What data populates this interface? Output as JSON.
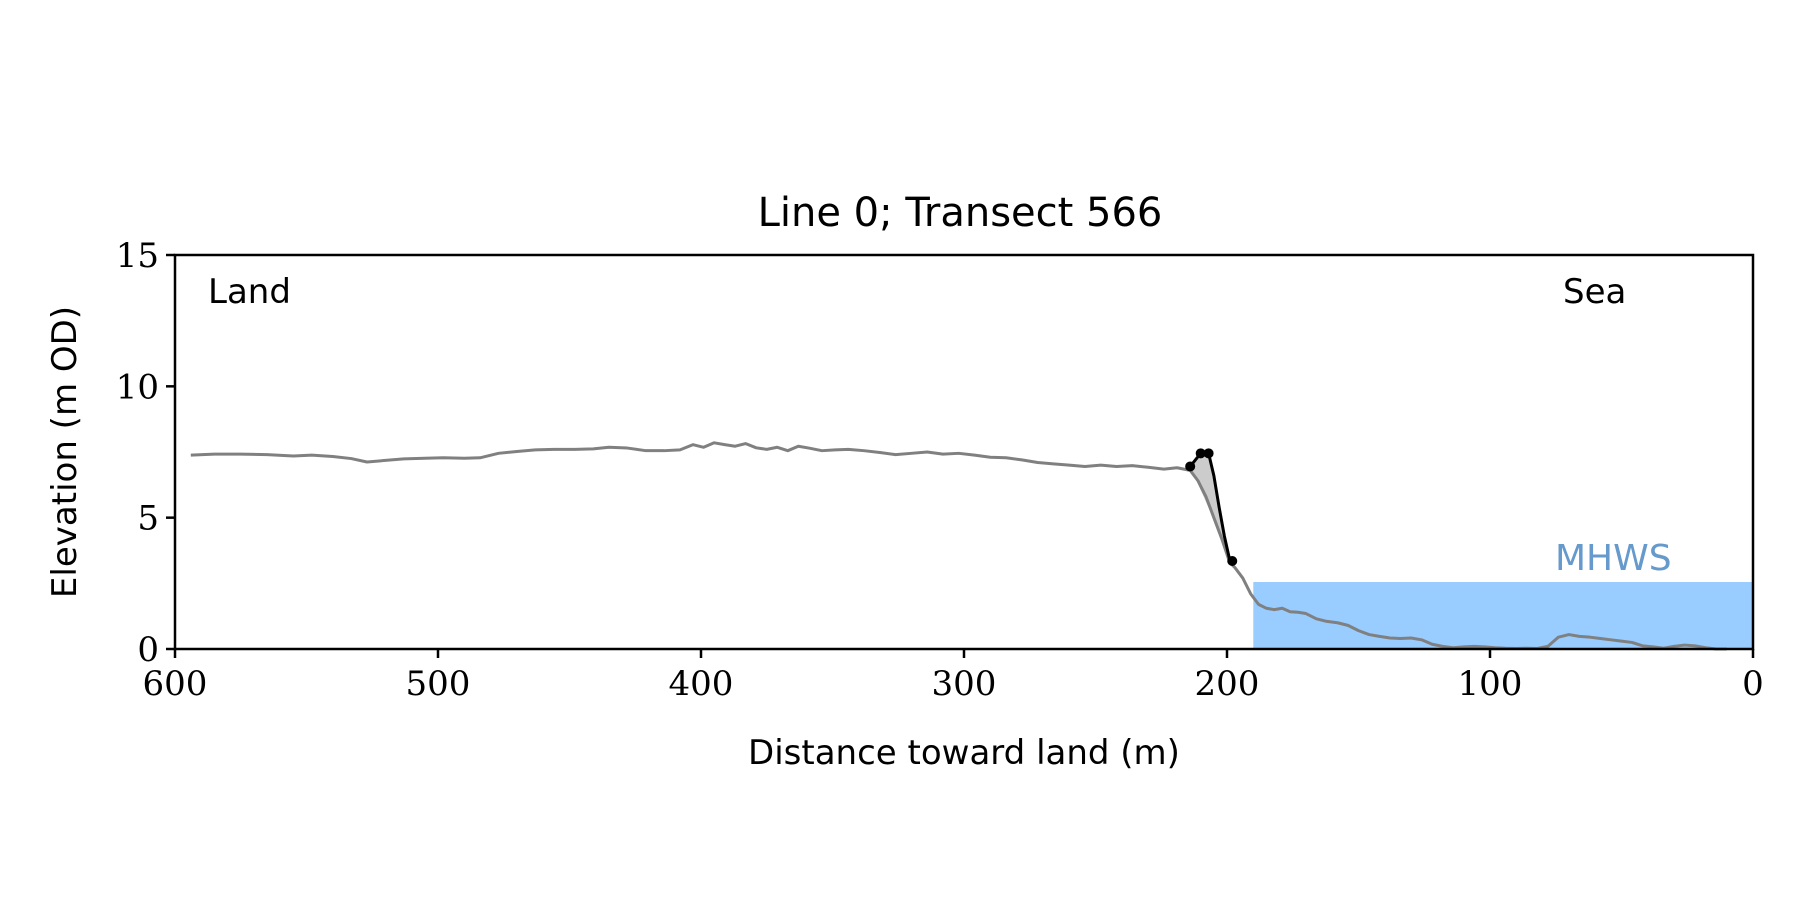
{
  "chart_data": {
    "type": "line",
    "title": "Line 0; Transect 566",
    "xlabel": "Distance toward land (m)",
    "ylabel": "Elevation (m OD)",
    "xlim": [
      600,
      0
    ],
    "ylim": [
      0,
      15
    ],
    "x_ticks": [
      600,
      500,
      400,
      300,
      200,
      100,
      0
    ],
    "y_ticks": [
      0,
      5,
      10,
      15
    ],
    "grid": false,
    "annotations": {
      "land": "Land",
      "sea": "Sea",
      "mhws": "MHWS"
    },
    "mhws": {
      "elevation": 2.55,
      "x_start": 190,
      "x_end": 0,
      "color": "#99ccff",
      "label_color": "#6699cc"
    },
    "profile": {
      "color": "#808080",
      "x": [
        594,
        585,
        575,
        565,
        555,
        548,
        540,
        533,
        527,
        520,
        513,
        505,
        498,
        490,
        484,
        477,
        470,
        463,
        456,
        448,
        441,
        435,
        428,
        421,
        414,
        408,
        403,
        399,
        395,
        391,
        387,
        383,
        379,
        375,
        371,
        367,
        363,
        359,
        354,
        349,
        344,
        338,
        332,
        326,
        320,
        314,
        308,
        302,
        296,
        290,
        284,
        278,
        272,
        266,
        260,
        254,
        248,
        242,
        236,
        230,
        224,
        219,
        214,
        211,
        208,
        205,
        202,
        199,
        197,
        194,
        191,
        188,
        185,
        182,
        179,
        176,
        173,
        170,
        166,
        162,
        158,
        154,
        150,
        146,
        142,
        138,
        134,
        130,
        126,
        122,
        118,
        114,
        110,
        106,
        102,
        98,
        94,
        90,
        86,
        82,
        78,
        74,
        70,
        66,
        62,
        58,
        54,
        50,
        46,
        42,
        38,
        34,
        30,
        26,
        22,
        18,
        14,
        10
      ],
      "y": [
        7.38,
        7.42,
        7.42,
        7.4,
        7.35,
        7.38,
        7.33,
        7.25,
        7.12,
        7.18,
        7.24,
        7.26,
        7.28,
        7.26,
        7.28,
        7.45,
        7.52,
        7.58,
        7.6,
        7.6,
        7.62,
        7.68,
        7.65,
        7.55,
        7.55,
        7.58,
        7.78,
        7.68,
        7.85,
        7.78,
        7.72,
        7.82,
        7.66,
        7.6,
        7.68,
        7.55,
        7.72,
        7.65,
        7.55,
        7.58,
        7.6,
        7.55,
        7.48,
        7.4,
        7.45,
        7.5,
        7.42,
        7.45,
        7.38,
        7.3,
        7.28,
        7.2,
        7.1,
        7.05,
        7.0,
        6.95,
        7.0,
        6.95,
        6.98,
        6.92,
        6.85,
        6.9,
        6.8,
        6.4,
        5.8,
        5.0,
        4.2,
        3.3,
        3.1,
        2.7,
        2.1,
        1.7,
        1.55,
        1.5,
        1.55,
        1.42,
        1.4,
        1.35,
        1.15,
        1.05,
        1.0,
        0.9,
        0.7,
        0.55,
        0.48,
        0.42,
        0.4,
        0.42,
        0.35,
        0.18,
        0.1,
        0.05,
        0.08,
        0.1,
        0.08,
        0.05,
        0.03,
        0.02,
        0.03,
        0.02,
        0.1,
        0.45,
        0.55,
        0.48,
        0.45,
        0.4,
        0.35,
        0.3,
        0.25,
        0.12,
        0.08,
        0.03,
        0.1,
        0.15,
        0.12,
        0.05,
        0.0,
        0.0
      ]
    },
    "cliff": {
      "color": "#000000",
      "fill_color": "#cccccc",
      "x": [
        214,
        210,
        207,
        205,
        203,
        201,
        199,
        198
      ],
      "y": [
        6.95,
        7.45,
        7.45,
        6.6,
        5.4,
        4.3,
        3.4,
        3.35
      ],
      "markers": [
        [
          214,
          6.95
        ],
        [
          210,
          7.45
        ],
        [
          207,
          7.45
        ],
        [
          198,
          3.35
        ]
      ]
    }
  }
}
